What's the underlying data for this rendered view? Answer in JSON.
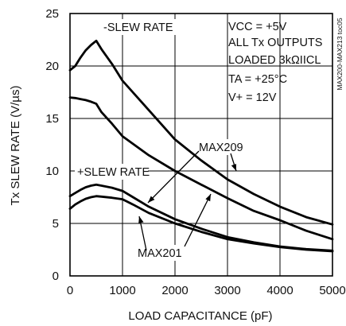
{
  "chart_data": {
    "type": "line",
    "xlabel": "LOAD CAPACITANCE (pF)",
    "ylabel": "Tx SLEW RATE (V/µs)",
    "xlim": [
      0,
      5000
    ],
    "ylim": [
      0,
      25
    ],
    "xticks": [
      0,
      1000,
      2000,
      3000,
      4000,
      5000
    ],
    "yticks": [
      0,
      5,
      10,
      15,
      20,
      25
    ],
    "grid": true,
    "side_text": "MAX200-MAX213 toc05",
    "conditions": [
      "VCC = +5V",
      "ALL Tx OUTPUTS",
      "LOADED 3kΩIICL",
      "TA = +25°C",
      "V+ = 12V"
    ],
    "series_labels": [
      "-SLEW RATE",
      "+SLEW RATE",
      "MAX209",
      "MAX201"
    ],
    "series": [
      {
        "x": [
          0,
          100,
          200,
          300,
          400,
          500,
          600,
          800,
          1000,
          1500,
          2000,
          2500,
          3000,
          3500,
          4000,
          4500,
          5000
        ],
        "values": [
          19.6,
          20.0,
          20.8,
          21.5,
          22.0,
          22.4,
          21.6,
          20.2,
          18.6,
          15.8,
          13.0,
          11.0,
          9.2,
          7.8,
          6.6,
          5.6,
          4.9
        ]
      },
      {
        "x": [
          0,
          100,
          200,
          300,
          400,
          500,
          600,
          800,
          1000,
          1500,
          2000,
          2500,
          3000,
          3500,
          4000,
          4500,
          5000
        ],
        "values": [
          17.0,
          16.95,
          16.85,
          16.75,
          16.6,
          16.4,
          15.6,
          14.5,
          13.3,
          11.5,
          10.0,
          8.7,
          7.4,
          6.2,
          5.3,
          4.3,
          3.5
        ]
      },
      {
        "x": [
          0,
          100,
          200,
          300,
          400,
          500,
          600,
          800,
          1000,
          1200,
          1500,
          2000,
          2500,
          3000,
          3500,
          4000,
          4500,
          5000
        ],
        "values": [
          7.6,
          7.9,
          8.2,
          8.45,
          8.6,
          8.7,
          8.6,
          8.4,
          8.1,
          7.5,
          6.6,
          5.4,
          4.5,
          3.7,
          3.2,
          2.8,
          2.55,
          2.4
        ]
      },
      {
        "x": [
          0,
          100,
          200,
          300,
          400,
          500,
          600,
          800,
          1000,
          1200,
          1500,
          2000,
          2500,
          3000,
          3500,
          4000,
          4500,
          5000
        ],
        "values": [
          6.4,
          6.8,
          7.1,
          7.35,
          7.5,
          7.6,
          7.55,
          7.45,
          7.3,
          6.8,
          6.0,
          5.0,
          4.2,
          3.5,
          3.1,
          2.75,
          2.5,
          2.35
        ]
      }
    ]
  }
}
